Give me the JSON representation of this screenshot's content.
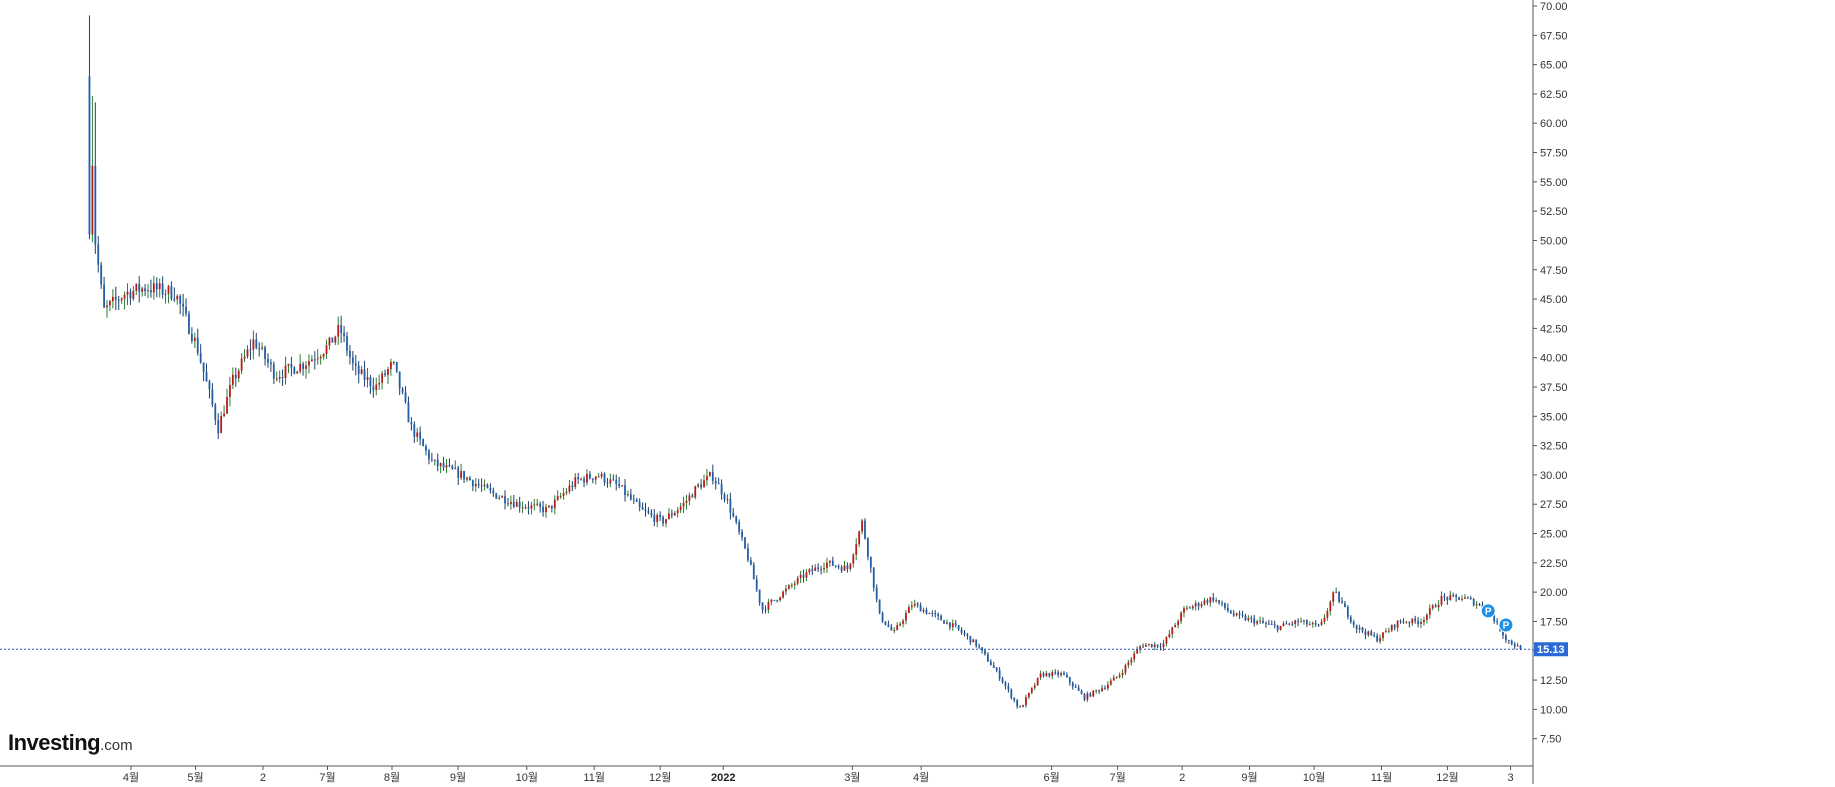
{
  "logo": {
    "brand": "Investing",
    "suffix": ".com"
  },
  "colors": {
    "up": "#b71c1c",
    "down": "#1f5fa8",
    "wick_up": "#2e7d32",
    "wick_down": "#1f3f6a",
    "current_line": "#2a52be",
    "price_tag": "#2a6ad8",
    "marker": "#1e90e6"
  },
  "chart_data": {
    "type": "candlestick",
    "ylim": [
      5,
      70
    ],
    "y_ticks": [
      "7.50",
      "10.00",
      "12.50",
      "15.00",
      "17.50",
      "20.00",
      "22.50",
      "25.00",
      "27.50",
      "30.00",
      "32.50",
      "35.00",
      "37.50",
      "40.00",
      "42.50",
      "45.00",
      "47.50",
      "50.00",
      "52.50",
      "55.00",
      "57.50",
      "60.00",
      "62.50",
      "65.00",
      "67.50",
      "70.00"
    ],
    "x_labels": [
      {
        "label": "4월",
        "t": 0.03,
        "bold": false
      },
      {
        "label": "5월",
        "t": 0.075,
        "bold": false
      },
      {
        "label": "2",
        "t": 0.122,
        "bold": false
      },
      {
        "label": "7월",
        "t": 0.167,
        "bold": false
      },
      {
        "label": "8월",
        "t": 0.212,
        "bold": false
      },
      {
        "label": "9월",
        "t": 0.258,
        "bold": false
      },
      {
        "label": "10월",
        "t": 0.306,
        "bold": false
      },
      {
        "label": "11월",
        "t": 0.353,
        "bold": false
      },
      {
        "label": "12월",
        "t": 0.399,
        "bold": false
      },
      {
        "label": "2022",
        "t": 0.443,
        "bold": true
      },
      {
        "label": "3월",
        "t": 0.533,
        "bold": false
      },
      {
        "label": "4월",
        "t": 0.581,
        "bold": false
      },
      {
        "label": "6월",
        "t": 0.672,
        "bold": false
      },
      {
        "label": "7월",
        "t": 0.718,
        "bold": false
      },
      {
        "label": "2",
        "t": 0.763,
        "bold": false
      },
      {
        "label": "9월",
        "t": 0.81,
        "bold": false
      },
      {
        "label": "10월",
        "t": 0.855,
        "bold": false
      },
      {
        "label": "11월",
        "t": 0.902,
        "bold": false
      },
      {
        "label": "12월",
        "t": 0.948,
        "bold": false
      },
      {
        "label": "3",
        "t": 0.992,
        "bold": false
      }
    ],
    "trend": [
      [
        0.0,
        64.0
      ],
      [
        0.004,
        50.0
      ],
      [
        0.01,
        44.0
      ],
      [
        0.025,
        45.5
      ],
      [
        0.04,
        46.0
      ],
      [
        0.06,
        45.5
      ],
      [
        0.075,
        41.0
      ],
      [
        0.09,
        34.0
      ],
      [
        0.1,
        38.0
      ],
      [
        0.115,
        41.5
      ],
      [
        0.13,
        38.5
      ],
      [
        0.15,
        39.5
      ],
      [
        0.167,
        41.0
      ],
      [
        0.175,
        42.5
      ],
      [
        0.185,
        39.0
      ],
      [
        0.2,
        37.5
      ],
      [
        0.212,
        39.5
      ],
      [
        0.225,
        34.0
      ],
      [
        0.24,
        31.0
      ],
      [
        0.26,
        30.0
      ],
      [
        0.28,
        28.5
      ],
      [
        0.3,
        27.5
      ],
      [
        0.32,
        27.0
      ],
      [
        0.34,
        29.5
      ],
      [
        0.355,
        30.0
      ],
      [
        0.37,
        29.0
      ],
      [
        0.385,
        27.0
      ],
      [
        0.4,
        26.0
      ],
      [
        0.415,
        27.5
      ],
      [
        0.425,
        29.0
      ],
      [
        0.435,
        30.0
      ],
      [
        0.445,
        28.0
      ],
      [
        0.46,
        23.0
      ],
      [
        0.47,
        18.5
      ],
      [
        0.485,
        20.0
      ],
      [
        0.5,
        21.5
      ],
      [
        0.515,
        22.5
      ],
      [
        0.53,
        22.0
      ],
      [
        0.54,
        26.0
      ],
      [
        0.552,
        18.0
      ],
      [
        0.562,
        16.5
      ],
      [
        0.575,
        19.0
      ],
      [
        0.59,
        18.0
      ],
      [
        0.605,
        17.0
      ],
      [
        0.62,
        15.5
      ],
      [
        0.635,
        13.0
      ],
      [
        0.65,
        10.0
      ],
      [
        0.665,
        13.0
      ],
      [
        0.68,
        13.0
      ],
      [
        0.695,
        11.0
      ],
      [
        0.71,
        12.0
      ],
      [
        0.72,
        13.0
      ],
      [
        0.735,
        15.5
      ],
      [
        0.75,
        15.5
      ],
      [
        0.765,
        18.5
      ],
      [
        0.775,
        19.0
      ],
      [
        0.785,
        19.5
      ],
      [
        0.8,
        18.0
      ],
      [
        0.815,
        17.5
      ],
      [
        0.83,
        17.0
      ],
      [
        0.845,
        17.5
      ],
      [
        0.86,
        17.0
      ],
      [
        0.87,
        20.0
      ],
      [
        0.885,
        17.0
      ],
      [
        0.9,
        16.0
      ],
      [
        0.915,
        17.5
      ],
      [
        0.93,
        17.5
      ],
      [
        0.945,
        19.5
      ],
      [
        0.96,
        19.5
      ],
      [
        0.97,
        19.0
      ],
      [
        0.98,
        18.0
      ],
      [
        0.99,
        16.0
      ],
      [
        1.0,
        15.13
      ]
    ],
    "current_price": "15.13",
    "markers": [
      {
        "label": "P",
        "t": 0.982,
        "value": 18.4
      },
      {
        "label": "P",
        "t": 0.986,
        "value": 17.2
      }
    ]
  }
}
